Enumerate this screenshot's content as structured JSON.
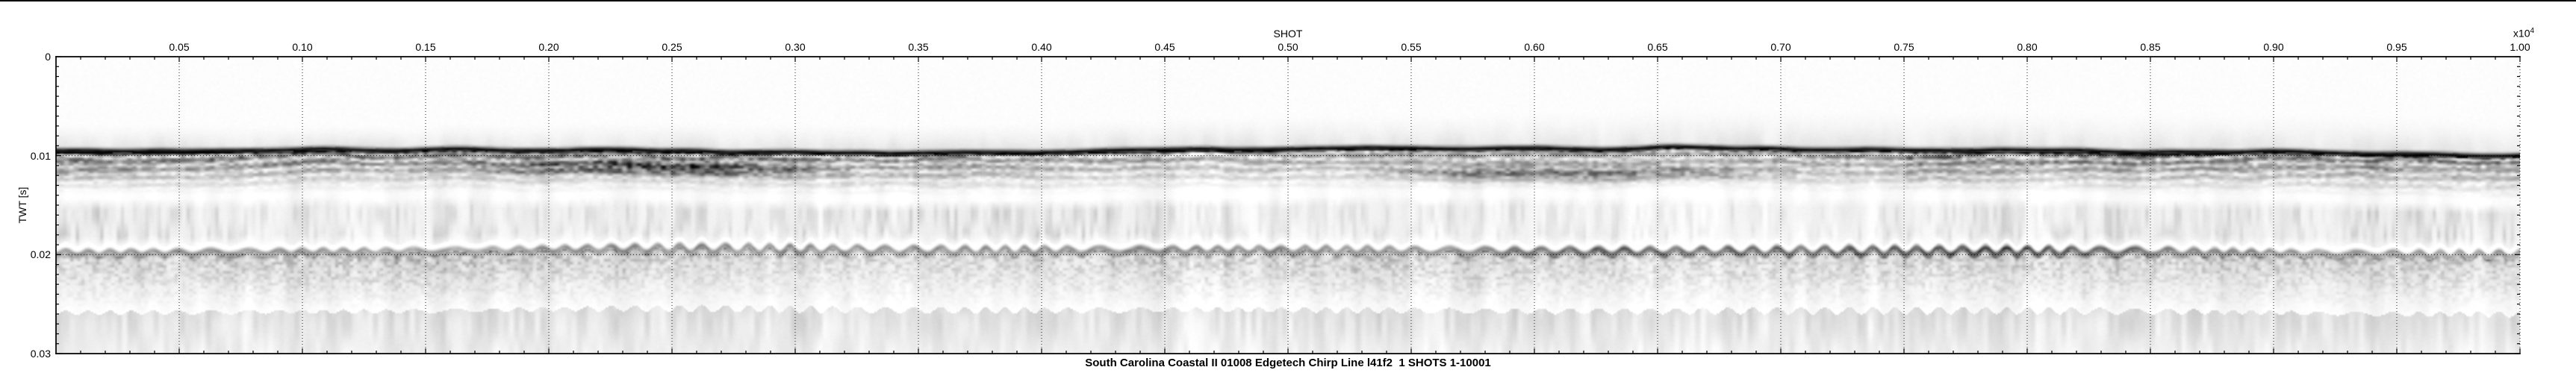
{
  "page": {
    "background": "#ffffff",
    "top_border_color": "#000000"
  },
  "chart_data": {
    "type": "heatmap",
    "title": "South Carolina Coastal II 01008 Edgetech Chirp Line l41f2  1 SHOTS 1-10001",
    "xlabel": "SHOT",
    "x_scale_label": "x10",
    "x_scale_exponent": "4",
    "ylabel": "TWT [s]",
    "xlim": [
      0,
      1.0
    ],
    "ylim": [
      0,
      0.03
    ],
    "x_tick_labels": [
      "0.05",
      "0.10",
      "0.15",
      "0.20",
      "0.25",
      "0.30",
      "0.35",
      "0.40",
      "0.45",
      "0.50",
      "0.55",
      "0.60",
      "0.65",
      "0.70",
      "0.75",
      "0.80",
      "0.85",
      "0.90",
      "0.95",
      "1.00"
    ],
    "y_tick_labels": [
      "0",
      "0.01",
      "0.02",
      "0.03"
    ],
    "x_minor_tick_step": 0.01,
    "y_minor_tick_step": 0.001,
    "grid": {
      "style": "dotted",
      "x_lines_at": "major x ticks",
      "y_lines": [
        0.01,
        0.02
      ]
    },
    "colormap": "grayscale, dark = high reflection amplitude",
    "features": {
      "seafloor_reflector_twt_s": 0.0095,
      "sub_bottom_reflector_twt_s": 0.0197,
      "shot_range": [
        1,
        10001
      ]
    }
  }
}
